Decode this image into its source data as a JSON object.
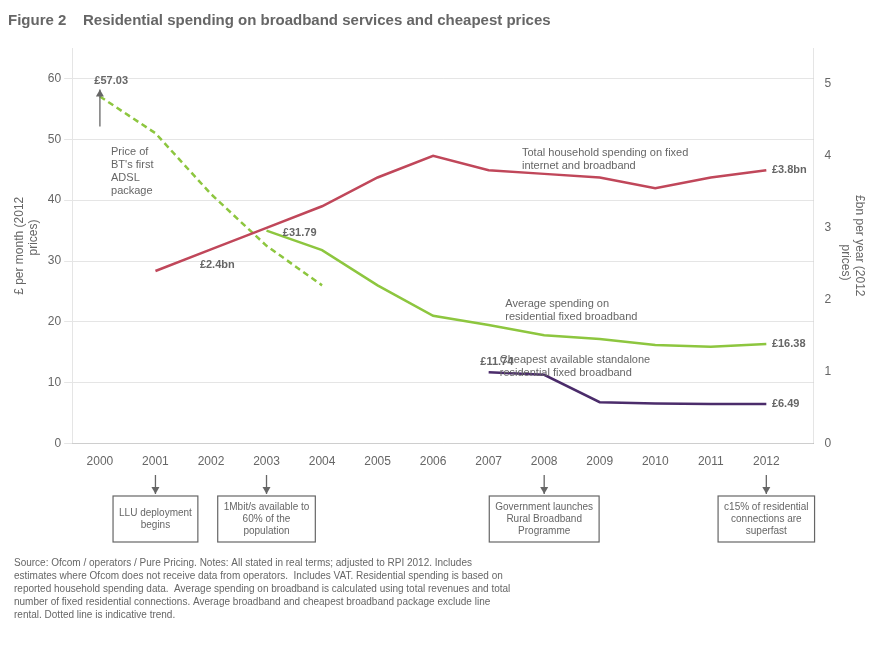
{
  "chart_data": {
    "type": "line",
    "title": "Figure 2    Residential spending on broadband services and cheapest prices",
    "y_label": "£ per month (2012\n     prices)",
    "y2_label": "£bn per year (2012\n          prices)",
    "xlim": [
      1999.5,
      2012.85
    ],
    "xticks": [
      2000,
      2001,
      2002,
      2003,
      2004,
      2005,
      2006,
      2007,
      2008,
      2009,
      2010,
      2011,
      2012
    ],
    "ylim": [
      0,
      65
    ],
    "yticks": [
      0,
      10,
      20,
      30,
      40,
      50,
      60
    ],
    "y2lim": [
      0,
      5.5
    ],
    "y2ticks": [
      0,
      1,
      2,
      3,
      4,
      5
    ],
    "grid": "y",
    "series": [
      {
        "axis": "y2",
        "color": "#C0475A",
        "line_style": "solid",
        "x": [
          2001,
          2002,
          2003,
          2004,
          2005,
          2006,
          2007,
          2008,
          2009,
          2010,
          2011,
          2012
        ],
        "values": [
          2.4,
          2.7,
          3.0,
          3.3,
          3.7,
          4.0,
          3.8,
          3.75,
          3.7,
          3.55,
          3.7,
          3.8
        ]
      },
      {
        "axis": "y",
        "color": "#8DC63F",
        "line_style": "dashed",
        "x": [
          2000,
          2001,
          2002,
          2003,
          2004
        ],
        "values": [
          57.03,
          51,
          41,
          32.5,
          26
        ]
      },
      {
        "axis": "y",
        "color": "#8DC63F",
        "line_style": "solid",
        "x": [
          2003,
          2004,
          2005,
          2006,
          2007,
          2008,
          2009,
          2010,
          2011,
          2012
        ],
        "values": [
          35,
          31.79,
          26,
          21,
          19.5,
          17.8,
          17.2,
          16.2,
          15.9,
          16.38
        ]
      },
      {
        "axis": "y",
        "color": "#4B2C6B",
        "line_style": "solid",
        "x": [
          2007,
          2008,
          2009,
          2010,
          2011,
          2012
        ],
        "values": [
          11.74,
          11.3,
          6.8,
          6.6,
          6.5,
          6.49
        ]
      }
    ],
    "annotations": [
      {
        "text": "£57.03",
        "x": 1999.9,
        "y": 58.5,
        "axis": "y"
      },
      {
        "text": "Price of\nBT's first\nADSL\npackage",
        "x": 2000.2,
        "y": 49,
        "axis": "y"
      },
      {
        "text": "£2.4bn",
        "x": 2001.8,
        "y": 2.4,
        "axis": "y2"
      },
      {
        "text": "£31.79",
        "x": 2003.9,
        "y": 33.5,
        "axis": "y"
      },
      {
        "text": "Total household spending on fixed\ninternet and broadband",
        "x": 2007.6,
        "y": 44.5,
        "axis": "y"
      },
      {
        "text": "Average spending on\nresidential fixed broadband",
        "x": 2007.3,
        "y": 24,
        "axis": "y"
      },
      {
        "text": "£16.38",
        "x": 2012.1,
        "y": 16.38,
        "axis": "y"
      },
      {
        "text": "Cheapest available standalone\nresidential fixed broadband",
        "x": 2007.2,
        "y": 14.8,
        "axis": "y"
      },
      {
        "text": "£11.74",
        "x": 2006.85,
        "y": 12.4,
        "axis": "y"
      },
      {
        "text": "£6.49",
        "x": 2012.1,
        "y": 6.49,
        "axis": "y"
      },
      {
        "text": "£3.8bn",
        "x": 2012.1,
        "y": 3.8,
        "axis": "y2"
      }
    ],
    "events": [
      {
        "x": 2001,
        "label": "LLU deployment\nbegins"
      },
      {
        "x": 2003,
        "label": "1Mbit/s available to\n60% of the\npopulation"
      },
      {
        "x": 2008,
        "label": "Government launches\nRural Broadband\nProgramme"
      },
      {
        "x": 2012,
        "label": "c15% of residential\nconnections are\nsuperfast"
      }
    ],
    "note": "Source: Ofcom / operators / Pure Pricing. Notes: All stated in real terms; adjusted to RPI 2012. Includes\nestimates where Ofcom does not receive data from operators.  Includes VAT. Residential spending is based on\nreported household spending data.  Average spending on broadband is calculated using total revenues and total\nnumber of fixed residential connections. Average broadband and cheapest broadband package exclude line\nrental. Dotted line is indicative trend."
  }
}
